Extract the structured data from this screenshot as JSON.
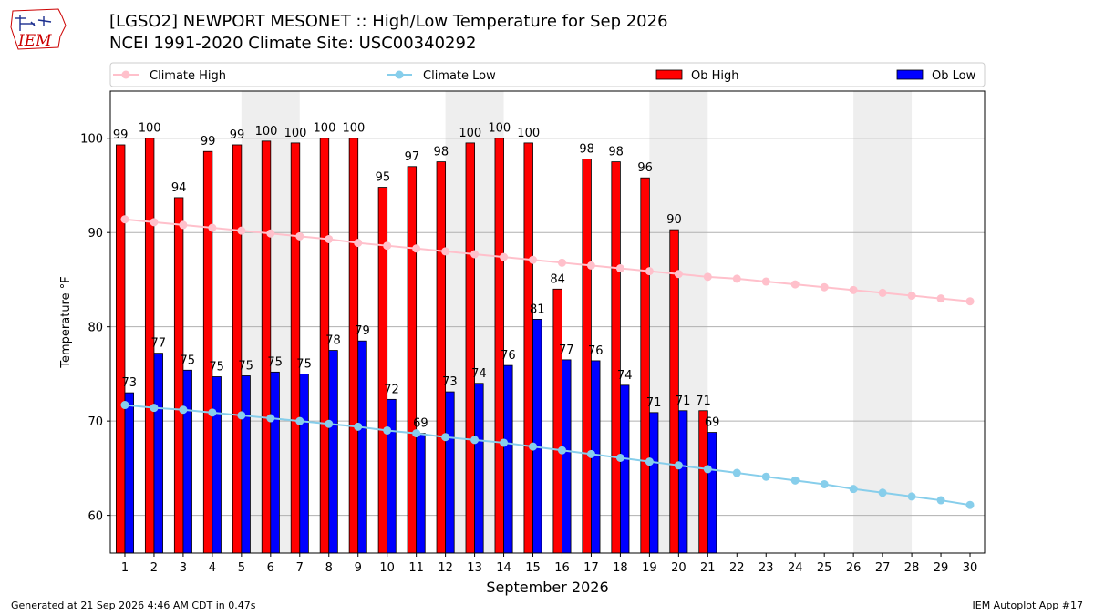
{
  "header": {
    "title_line1": "[LGSO2] NEWPORT MESONET :: High/Low Temperature for Sep 2026",
    "title_line2": "NCEI 1991-2020 Climate Site: USC00340292"
  },
  "logo": {
    "text": "IEM",
    "color": "#cc0000"
  },
  "footer": {
    "left": "Generated at 21 Sep 2026 4:46 AM CDT in 0.47s",
    "right": "IEM Autoplot App #17"
  },
  "colors": {
    "ob_high": "#ff0000",
    "ob_low": "#0000ff",
    "climate_high": "#ffc0cb",
    "climate_low": "#87ceeb",
    "weekend_shade": "#eeeeee",
    "grid": "#b0b0b0"
  },
  "chart_data": {
    "type": "bar",
    "xlabel": "September 2026",
    "ylabel": "Temperature °F",
    "ylim": [
      56,
      105
    ],
    "yticks": [
      60,
      70,
      80,
      90,
      100
    ],
    "grid": "horizontal",
    "legend_placement": "top",
    "categories": [
      "1",
      "2",
      "3",
      "4",
      "5",
      "6",
      "7",
      "8",
      "9",
      "10",
      "11",
      "12",
      "13",
      "14",
      "15",
      "16",
      "17",
      "18",
      "19",
      "20",
      "21",
      "22",
      "23",
      "24",
      "25",
      "26",
      "27",
      "28",
      "29",
      "30"
    ],
    "shaded_days": [
      [
        6,
        7
      ],
      [
        13,
        14
      ],
      [
        20,
        21
      ],
      [
        27,
        28
      ]
    ],
    "series": [
      {
        "name": "Climate High",
        "kind": "line",
        "values": [
          91.4,
          91.1,
          90.8,
          90.5,
          90.2,
          89.9,
          89.6,
          89.3,
          88.9,
          88.6,
          88.3,
          88.0,
          87.7,
          87.4,
          87.1,
          86.8,
          86.5,
          86.2,
          85.9,
          85.6,
          85.3,
          85.1,
          84.8,
          84.5,
          84.2,
          83.9,
          83.6,
          83.3,
          83.0,
          82.7
        ]
      },
      {
        "name": "Climate Low",
        "kind": "line",
        "values": [
          71.7,
          71.4,
          71.2,
          70.9,
          70.6,
          70.3,
          70.0,
          69.7,
          69.4,
          69.0,
          68.7,
          68.3,
          68.0,
          67.7,
          67.3,
          66.9,
          66.5,
          66.1,
          65.7,
          65.3,
          64.9,
          64.5,
          64.1,
          63.7,
          63.3,
          62.8,
          62.4,
          62.0,
          61.6,
          61.1
        ]
      },
      {
        "name": "Ob High",
        "kind": "bar",
        "values": [
          99.3,
          100,
          93.7,
          98.6,
          99.3,
          99.7,
          99.5,
          100,
          100,
          94.8,
          97,
          97.5,
          99.5,
          100,
          99.5,
          84,
          97.8,
          97.5,
          95.8,
          90.3,
          71.1,
          null,
          null,
          null,
          null,
          null,
          null,
          null,
          null,
          null
        ],
        "labels": [
          "99",
          "100",
          "94",
          "99",
          "99",
          "100",
          "100",
          "100",
          "100",
          "95",
          "97",
          "98",
          "100",
          "100",
          "100",
          "84",
          "98",
          "98",
          "96",
          "90",
          "71",
          "",
          "",
          "",
          "",
          "",
          "",
          "",
          "",
          ""
        ]
      },
      {
        "name": "Ob Low",
        "kind": "bar",
        "values": [
          73,
          77.2,
          75.4,
          74.7,
          74.8,
          75.2,
          75,
          77.5,
          78.5,
          72.3,
          68.7,
          73.1,
          74,
          75.9,
          80.8,
          76.5,
          76.4,
          73.8,
          70.9,
          71.1,
          68.8,
          null,
          null,
          null,
          null,
          null,
          null,
          null,
          null,
          null
        ],
        "labels": [
          "73",
          "77",
          "75",
          "75",
          "75",
          "75",
          "75",
          "78",
          "79",
          "72",
          "69",
          "73",
          "74",
          "76",
          "81",
          "77",
          "76",
          "74",
          "71",
          "71",
          "69",
          "",
          "",
          "",
          "",
          "",
          "",
          "",
          "",
          ""
        ]
      }
    ]
  }
}
